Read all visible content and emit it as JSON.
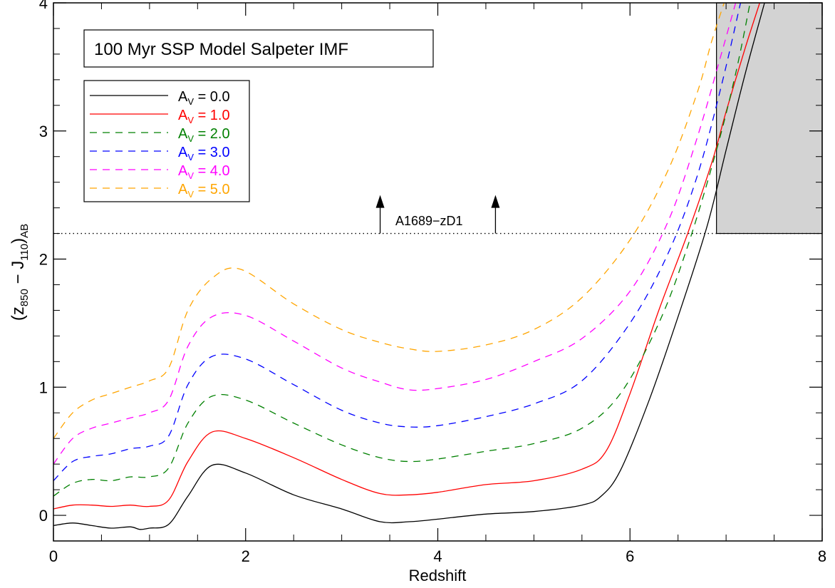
{
  "chart_data": {
    "type": "line",
    "title": "",
    "xlabel": "Redshift",
    "ylabel": {
      "pre": "(z",
      "sub1": "850",
      "mid": " − J",
      "sub2": "110",
      "post": ")",
      "sub3": "AB"
    },
    "xlim": [
      0,
      8
    ],
    "ylim": [
      -0.2,
      4
    ],
    "x_ticks": [
      0,
      2,
      4,
      6,
      8
    ],
    "y_ticks": [
      0,
      1,
      2,
      3,
      4
    ],
    "annotation_box": "100 Myr  SSP Model  Salpeter IMF",
    "threshold": {
      "y": 2.2,
      "label": "A1689−zD1",
      "arrow_x": [
        3.4,
        4.6
      ]
    },
    "shaded_region": {
      "x_min": 6.9,
      "x_max": 8,
      "y_min": 2.2,
      "y_max": 4,
      "color": "#d3d3d3"
    },
    "legend_placement": "upper-left",
    "series": [
      {
        "name": "A_V = 0.0",
        "av_label": "A",
        "av_sub": "V",
        "av_value": "= 0.0",
        "color": "#000000",
        "dashed": false,
        "x": [
          0,
          0.2,
          0.4,
          0.6,
          0.8,
          0.9,
          1.0,
          1.2,
          1.4,
          1.65,
          2.0,
          2.5,
          3.0,
          3.4,
          3.7,
          4.0,
          4.5,
          5.0,
          5.5,
          5.7,
          5.9,
          6.2,
          6.5,
          6.8,
          7.0,
          7.2,
          7.4
        ],
        "y": [
          -0.08,
          -0.06,
          -0.08,
          -0.1,
          -0.09,
          -0.11,
          -0.1,
          -0.07,
          0.15,
          0.39,
          0.33,
          0.16,
          0.05,
          -0.05,
          -0.05,
          -0.03,
          0.01,
          0.03,
          0.08,
          0.15,
          0.35,
          0.9,
          1.55,
          2.25,
          2.85,
          3.45,
          4.0
        ]
      },
      {
        "name": "A_V = 1.0",
        "av_label": "A",
        "av_sub": "V",
        "av_value": "= 1.0",
        "color": "#ff0000",
        "dashed": false,
        "x": [
          0,
          0.2,
          0.4,
          0.6,
          0.8,
          1.0,
          1.2,
          1.4,
          1.65,
          2.0,
          2.5,
          3.0,
          3.4,
          3.7,
          4.0,
          4.5,
          5.0,
          5.5,
          5.75,
          6.0,
          6.3,
          6.6,
          6.85,
          7.0,
          7.2,
          7.35
        ],
        "y": [
          0.05,
          0.08,
          0.08,
          0.07,
          0.08,
          0.07,
          0.12,
          0.42,
          0.65,
          0.6,
          0.45,
          0.28,
          0.17,
          0.16,
          0.18,
          0.24,
          0.27,
          0.36,
          0.5,
          0.95,
          1.6,
          2.2,
          2.75,
          3.15,
          3.65,
          4.0
        ]
      },
      {
        "name": "A_V = 2.0",
        "av_label": "A",
        "av_sub": "V",
        "av_value": "= 2.0",
        "color": "#008000",
        "dashed": true,
        "x": [
          0,
          0.2,
          0.4,
          0.6,
          0.8,
          1.0,
          1.2,
          1.4,
          1.65,
          2.0,
          2.5,
          3.0,
          3.4,
          3.7,
          4.0,
          4.5,
          5.0,
          5.5,
          5.9,
          6.3,
          6.6,
          6.9,
          7.1,
          7.25
        ],
        "y": [
          0.15,
          0.25,
          0.28,
          0.27,
          0.3,
          0.3,
          0.37,
          0.72,
          0.93,
          0.9,
          0.72,
          0.55,
          0.45,
          0.42,
          0.44,
          0.5,
          0.56,
          0.68,
          0.95,
          1.5,
          2.1,
          2.85,
          3.45,
          4.0
        ]
      },
      {
        "name": "A_V = 3.0",
        "av_label": "A",
        "av_sub": "V",
        "av_value": "= 3.0",
        "color": "#0000ff",
        "dashed": true,
        "x": [
          0,
          0.2,
          0.4,
          0.6,
          0.8,
          1.0,
          1.2,
          1.4,
          1.65,
          2.0,
          2.5,
          3.0,
          3.4,
          3.7,
          4.0,
          4.5,
          5.0,
          5.5,
          6.0,
          6.4,
          6.7,
          6.95,
          7.15
        ],
        "y": [
          0.27,
          0.42,
          0.46,
          0.48,
          0.52,
          0.54,
          0.62,
          1.02,
          1.24,
          1.22,
          1.02,
          0.82,
          0.72,
          0.69,
          0.7,
          0.77,
          0.87,
          1.05,
          1.5,
          2.05,
          2.65,
          3.35,
          4.0
        ]
      },
      {
        "name": "A_V = 4.0",
        "av_label": "A",
        "av_sub": "V",
        "av_value": "= 4.0",
        "color": "#ff00ff",
        "dashed": true,
        "x": [
          0,
          0.2,
          0.4,
          0.6,
          0.8,
          1.0,
          1.2,
          1.4,
          1.65,
          2.0,
          2.5,
          3.0,
          3.4,
          3.7,
          4.0,
          4.5,
          5.0,
          5.5,
          6.0,
          6.4,
          6.7,
          6.95,
          7.1
        ],
        "y": [
          0.4,
          0.6,
          0.68,
          0.72,
          0.76,
          0.8,
          0.9,
          1.32,
          1.55,
          1.56,
          1.36,
          1.15,
          1.04,
          0.98,
          0.99,
          1.06,
          1.2,
          1.38,
          1.75,
          2.3,
          2.95,
          3.6,
          4.0
        ]
      },
      {
        "name": "A_V = 5.0",
        "av_label": "A",
        "av_sub": "V",
        "av_value": "= 5.0",
        "color": "#ffa500",
        "dashed": true,
        "x": [
          0,
          0.2,
          0.4,
          0.6,
          0.8,
          1.0,
          1.2,
          1.4,
          1.65,
          1.95,
          2.5,
          3.0,
          3.4,
          3.7,
          4.0,
          4.5,
          5.0,
          5.5,
          6.0,
          6.4,
          6.7,
          6.85,
          6.98
        ],
        "y": [
          0.6,
          0.8,
          0.9,
          0.95,
          1.0,
          1.05,
          1.15,
          1.6,
          1.85,
          1.92,
          1.65,
          1.45,
          1.35,
          1.3,
          1.28,
          1.33,
          1.45,
          1.7,
          2.15,
          2.7,
          3.3,
          3.7,
          4.0
        ]
      }
    ]
  }
}
